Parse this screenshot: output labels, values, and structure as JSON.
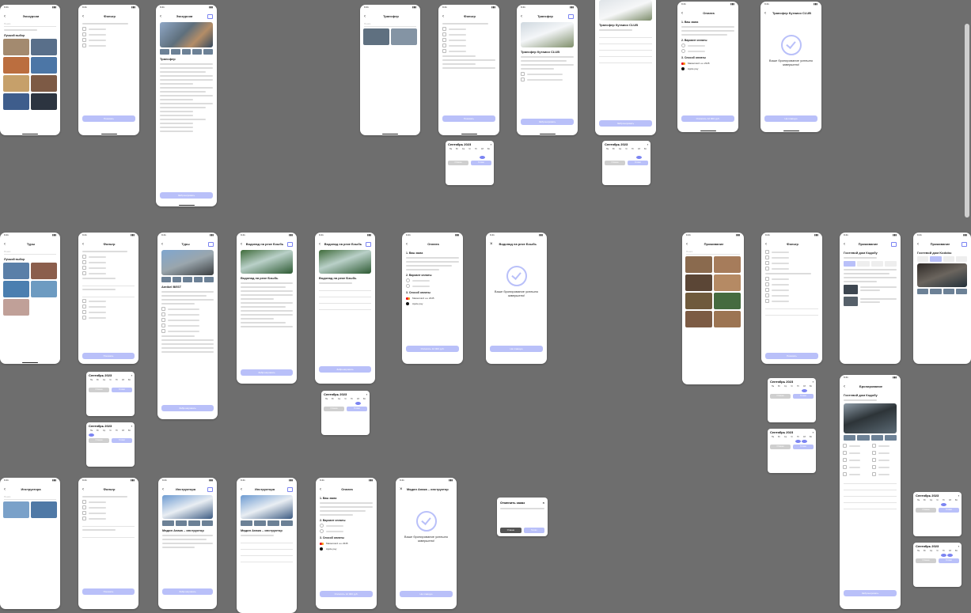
{
  "colors": {
    "background": "#6e6e6e",
    "accent": "#b9c0f9",
    "accent_dark": "#7b84f2",
    "card": "#ffffff"
  },
  "status_time": "9:41",
  "screens": {
    "excursions": "Экскурсии",
    "filter": "Фильтр",
    "transfer": "Трансфер",
    "payment": "Оплата",
    "transfer_club": "Трансфер Кутаиси CLUB",
    "tours": "Туры",
    "waterfall_title": "Водопад на реке Бзыбь",
    "accommodation": "Проживание",
    "instructors": "Инструктора",
    "booking": "Бронирование"
  },
  "texts": {
    "search_placeholder": "Поиск",
    "popular": "Лучший выбор",
    "transfer_car": "Трансфер Кутаиси CLUB",
    "transfer_subtitle": "Мерседес / 3 места",
    "tour_title": "Amtkel BEST",
    "waterfall": "Водопад на реке Бзыбь",
    "guest_house": "Гостевой дом Кодобу",
    "guest_house_2": "Гостевой дом Kodobu",
    "instructor": "Мадин Анака – инструктор",
    "success_booking": "Ваше бронирование успешно завершено!",
    "success_booking_2": "Ваше бронирование успешно завершено!",
    "cancel_question": "Отменить заказ",
    "pay_section_1": "1. Ваш заказ",
    "pay_section_2": "2. Вариант оплаты",
    "pay_section_3": "3. Способ оплаты",
    "apple_pay": "Apple pay",
    "mastercard": "Mastercard •••• 2345",
    "button_show": "Показать",
    "button_apply": "Применить",
    "button_book": "Забронировать",
    "button_pay": "Оплатить 12 000 руб.",
    "button_main": "На главную",
    "button_cancel": "Отмена",
    "button_done": "Готово",
    "calendar_month": "Сентябрь 2023"
  },
  "weekdays": [
    "Пн",
    "Вт",
    "Ср",
    "Чт",
    "Пт",
    "Сб",
    "Вс"
  ]
}
